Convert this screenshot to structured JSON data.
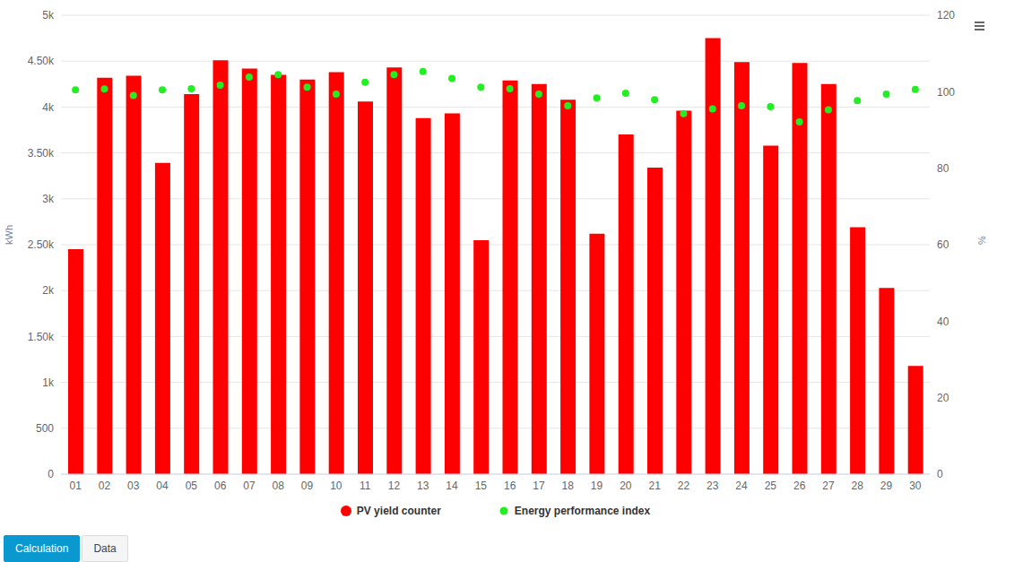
{
  "chart_data": {
    "type": "bar",
    "y_label": "kWh",
    "y2_label": "%",
    "categories": [
      "01",
      "02",
      "03",
      "04",
      "05",
      "06",
      "07",
      "08",
      "09",
      "10",
      "11",
      "12",
      "13",
      "14",
      "15",
      "16",
      "17",
      "18",
      "19",
      "20",
      "21",
      "22",
      "23",
      "24",
      "25",
      "26",
      "27",
      "28",
      "29",
      "30"
    ],
    "series": [
      {
        "name": "PV yield counter",
        "type": "bar",
        "color": "#ff0000",
        "values": [
          2450,
          4320,
          4340,
          3390,
          4140,
          4510,
          4420,
          4350,
          4300,
          4380,
          4060,
          4430,
          3880,
          3930,
          2550,
          4290,
          4250,
          4080,
          2620,
          3700,
          3340,
          3960,
          4750,
          4490,
          3580,
          4480,
          4250,
          2690,
          2030,
          1180
        ]
      },
      {
        "name": "Energy performance index",
        "type": "scatter",
        "axis": "y2",
        "color": "#22ee22",
        "marker": "circle",
        "line_style": "none",
        "values": [
          100.5,
          100.7,
          99,
          100.5,
          100.8,
          101.7,
          103.8,
          104.5,
          101.2,
          99.4,
          102.5,
          104.5,
          105.3,
          103.5,
          101.2,
          100.8,
          99.4,
          96.3,
          98.4,
          99.6,
          97.9,
          94.3,
          95.5,
          96.3,
          96.1,
          92.1,
          95.3,
          97.7,
          99.4,
          100.6
        ]
      }
    ],
    "ylim": [
      0,
      5000
    ],
    "yticks": [
      0,
      500,
      {
        "value": 1000,
        "label": "1k"
      },
      {
        "value": 1500,
        "label": "1.50k"
      },
      {
        "value": 2000,
        "label": "2k"
      },
      {
        "value": 2500,
        "label": "2.50k"
      },
      {
        "value": 3000,
        "label": "3k"
      },
      {
        "value": 3500,
        "label": "3.50k"
      },
      {
        "value": 4000,
        "label": "4k"
      },
      {
        "value": 4500,
        "label": "4.50k"
      },
      {
        "value": 5000,
        "label": "5k"
      }
    ],
    "y2lim": [
      0,
      120
    ],
    "y2ticks": [
      0,
      20,
      40,
      60,
      80,
      100,
      120
    ],
    "grid": true,
    "legend": "bottom"
  },
  "buttons": [
    "Calculation",
    "Data"
  ]
}
